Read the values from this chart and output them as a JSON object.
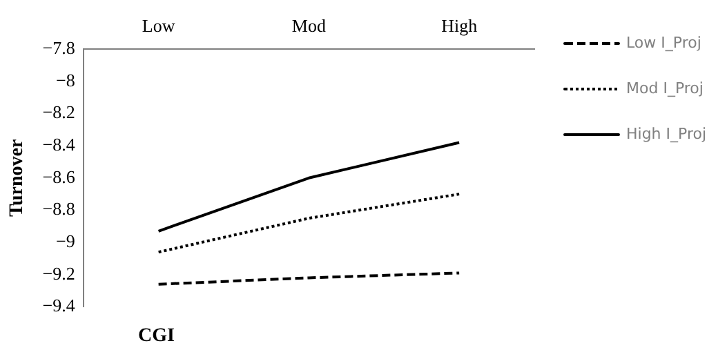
{
  "chart_data": {
    "type": "line",
    "xlabel": "CGI",
    "ylabel": "Turnover",
    "categories": [
      "Low",
      "Mod",
      "High"
    ],
    "series": [
      {
        "name": "Low I_Proj",
        "color": "#000000",
        "line_style": "dashed",
        "values": [
          -9.26,
          -9.22,
          -9.19
        ]
      },
      {
        "name": "Mod I_Proj",
        "color": "#000000",
        "line_style": "dotted",
        "values": [
          -9.06,
          -8.85,
          -8.7
        ]
      },
      {
        "name": "High I_Proj",
        "color": "#000000",
        "line_style": "solid",
        "values": [
          -8.93,
          -8.6,
          -8.38
        ]
      }
    ],
    "ylim": [
      -9.4,
      -7.8
    ],
    "yticks": [
      {
        "value": -9.4,
        "label": "−9.4"
      },
      {
        "value": -9.2,
        "label": "−9.2"
      },
      {
        "value": -9,
        "label": "−9"
      },
      {
        "value": -8.8,
        "label": "−8.8"
      },
      {
        "value": -8.6,
        "label": "−8.6"
      },
      {
        "value": -8.4,
        "label": "−8.4"
      },
      {
        "value": -8.2,
        "label": "−8.2"
      },
      {
        "value": -8,
        "label": "−8"
      },
      {
        "value": -7.8,
        "label": "−7.8"
      }
    ],
    "grid": false,
    "legend": "right",
    "marker": "none"
  }
}
